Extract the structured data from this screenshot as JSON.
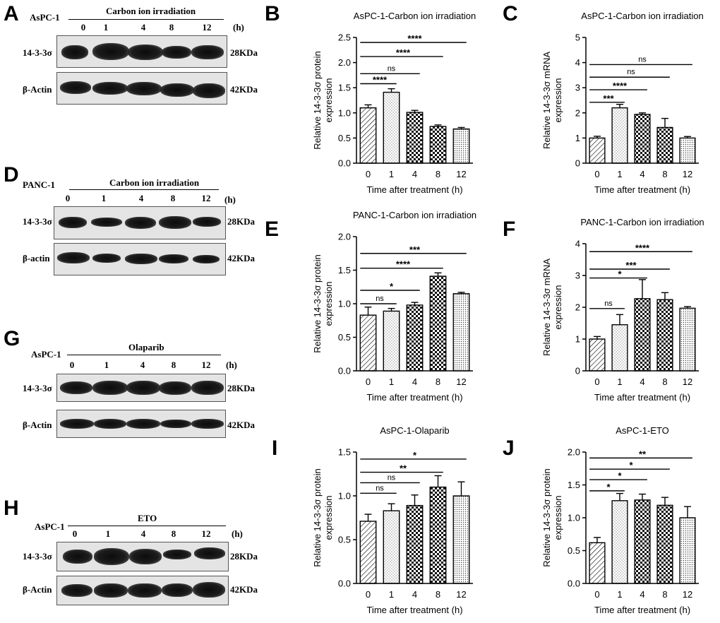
{
  "panel_letters": [
    "A",
    "B",
    "C",
    "D",
    "E",
    "F",
    "G",
    "H",
    "I",
    "J"
  ],
  "blots": [
    {
      "id": "A",
      "cell_line": "AsPC-1",
      "treatment": "Carbon ion irradiation",
      "lanes": [
        "0",
        "1",
        "4",
        "8",
        "12"
      ],
      "unit": "(h)",
      "rows": [
        {
          "label": "14-3-3σ",
          "kda": "28KDa",
          "bands": [
            0.75,
            0.95,
            0.85,
            0.7,
            0.8
          ]
        },
        {
          "label": "β-Actin",
          "kda": "42KDa",
          "bands": [
            0.75,
            0.75,
            0.78,
            0.8,
            0.85
          ]
        }
      ]
    },
    {
      "id": "D",
      "cell_line": "PANC-1",
      "treatment": "Carbon ion irradiation",
      "lanes": [
        "0",
        "1",
        "4",
        "8",
        "12"
      ],
      "unit": "(h)",
      "rows": [
        {
          "label": "14-3-3σ",
          "kda": "28KDa",
          "bands": [
            0.7,
            0.55,
            0.7,
            0.8,
            0.65
          ]
        },
        {
          "label": "β-actin",
          "kda": "42KDa",
          "bands": [
            0.75,
            0.5,
            0.7,
            0.6,
            0.55
          ]
        }
      ]
    },
    {
      "id": "G",
      "cell_line": "AsPC-1",
      "treatment": "Olaparib",
      "lanes": [
        "0",
        "1",
        "4",
        "8",
        "12"
      ],
      "unit": "(h)",
      "rows": [
        {
          "label": "14-3-3σ",
          "kda": "28KDa",
          "bands": [
            0.7,
            0.8,
            0.8,
            0.75,
            0.8
          ]
        },
        {
          "label": "β-Actin",
          "kda": "42KDa",
          "bands": [
            0.55,
            0.55,
            0.55,
            0.5,
            0.55
          ]
        }
      ]
    },
    {
      "id": "H",
      "cell_line": "AsPC-1",
      "treatment": "ETO",
      "lanes": [
        "0",
        "1",
        "4",
        "8",
        "12"
      ],
      "unit": "(h)",
      "rows": [
        {
          "label": "14-3-3σ",
          "kda": "28KDa",
          "bands": [
            0.8,
            0.95,
            0.9,
            0.55,
            0.7
          ]
        },
        {
          "label": "β-Actin",
          "kda": "42KDa",
          "bands": [
            0.75,
            0.8,
            0.8,
            0.75,
            0.85
          ]
        }
      ]
    }
  ],
  "chart_data": [
    {
      "id": "B",
      "type": "bar",
      "title": "AsPC-1-Carbon ion irradiation",
      "xlabel": "Time after treatment (h)",
      "ylabel": [
        "Relative 14-3-3σ protein",
        "expression"
      ],
      "categories": [
        "0",
        "1",
        "4",
        "8",
        "12"
      ],
      "values": [
        1.1,
        1.41,
        1.01,
        0.73,
        0.68
      ],
      "errors": [
        0.06,
        0.07,
        0.04,
        0.03,
        0.03
      ],
      "ylim": [
        0,
        2.5
      ],
      "yticks": [
        "0.0",
        "0.5",
        "1.0",
        "1.5",
        "2.0",
        "2.5"
      ],
      "patterns": [
        "diag",
        "dots",
        "cross",
        "cross",
        "dense"
      ],
      "comparisons": [
        {
          "from": 0,
          "to": 1,
          "y": 1.58,
          "label": "****"
        },
        {
          "from": 0,
          "to": 2,
          "y": 1.78,
          "label": "ns"
        },
        {
          "from": 0,
          "to": 3,
          "y": 2.12,
          "label": "****"
        },
        {
          "from": 0,
          "to": 4,
          "y": 2.4,
          "label": "****"
        }
      ]
    },
    {
      "id": "C",
      "type": "bar",
      "title": "AsPC-1-Carbon ion irradiation",
      "xlabel": "Time after treatment (h)",
      "ylabel": [
        "Relative 14-3-3σ mRNA",
        "expression"
      ],
      "categories": [
        "0",
        "1",
        "4",
        "8",
        "12"
      ],
      "values": [
        1.0,
        2.2,
        1.94,
        1.42,
        1.0
      ],
      "errors": [
        0.07,
        0.14,
        0.06,
        0.36,
        0.06
      ],
      "ylim": [
        0,
        5
      ],
      "yticks": [
        "0",
        "1",
        "2",
        "3",
        "4",
        "5"
      ],
      "patterns": [
        "diag",
        "dots",
        "cross",
        "cross",
        "dense"
      ],
      "comparisons": [
        {
          "from": 0,
          "to": 1,
          "y": 2.42,
          "label": "***"
        },
        {
          "from": 0,
          "to": 2,
          "y": 2.92,
          "label": "****"
        },
        {
          "from": 0,
          "to": 3,
          "y": 3.42,
          "label": "ns"
        },
        {
          "from": 0,
          "to": 4,
          "y": 3.92,
          "label": "ns"
        }
      ]
    },
    {
      "id": "E",
      "type": "bar",
      "title": "PANC-1-Carbon ion irradiation",
      "xlabel": "Time after treatment (h)",
      "ylabel": [
        "Relative 14-3-3σ protein",
        "expression"
      ],
      "categories": [
        "0",
        "1",
        "4",
        "8",
        "12"
      ],
      "values": [
        0.83,
        0.89,
        0.98,
        1.41,
        1.15
      ],
      "errors": [
        0.12,
        0.04,
        0.04,
        0.05,
        0.02
      ],
      "ylim": [
        0,
        2.0
      ],
      "yticks": [
        "0.0",
        "0.5",
        "1.0",
        "1.5",
        "2.0"
      ],
      "patterns": [
        "diag",
        "dots",
        "cross",
        "cross",
        "dense"
      ],
      "comparisons": [
        {
          "from": 0,
          "to": 1,
          "y": 1.0,
          "label": "ns"
        },
        {
          "from": 0,
          "to": 2,
          "y": 1.2,
          "label": "*"
        },
        {
          "from": 0,
          "to": 3,
          "y": 1.53,
          "label": "****"
        },
        {
          "from": 0,
          "to": 4,
          "y": 1.75,
          "label": "***"
        }
      ]
    },
    {
      "id": "F",
      "type": "bar",
      "title": "PANC-1-Carbon ion irradiation",
      "xlabel": "Time after treatment (h)",
      "ylabel": [
        "Relative 14-3-3σ mRNA",
        "expression"
      ],
      "categories": [
        "0",
        "1",
        "4",
        "8",
        "12"
      ],
      "values": [
        1.0,
        1.45,
        2.27,
        2.24,
        1.97
      ],
      "errors": [
        0.08,
        0.32,
        0.6,
        0.22,
        0.05
      ],
      "ylim": [
        0,
        4
      ],
      "yticks": [
        "0",
        "1",
        "2",
        "3",
        "4"
      ],
      "patterns": [
        "diag",
        "dots",
        "cross",
        "cross",
        "dense"
      ],
      "comparisons": [
        {
          "from": 0,
          "to": 1,
          "y": 1.96,
          "label": "ns"
        },
        {
          "from": 0,
          "to": 2,
          "y": 2.92,
          "label": "*"
        },
        {
          "from": 0,
          "to": 3,
          "y": 3.2,
          "label": "***"
        },
        {
          "from": 0,
          "to": 4,
          "y": 3.75,
          "label": "****"
        }
      ]
    },
    {
      "id": "I",
      "type": "bar",
      "title": "AsPC-1-Olaparib",
      "xlabel": "Time after treatment (h)",
      "ylabel": [
        "Relative 14-3-3σ protein",
        "expression"
      ],
      "categories": [
        "0",
        "1",
        "4",
        "8",
        "12"
      ],
      "values": [
        0.71,
        0.83,
        0.89,
        1.1,
        1.0
      ],
      "errors": [
        0.08,
        0.08,
        0.12,
        0.13,
        0.16
      ],
      "ylim": [
        0,
        1.5
      ],
      "yticks": [
        "0.0",
        "0.5",
        "1.0",
        "1.5"
      ],
      "patterns": [
        "diag",
        "dots",
        "cross",
        "cross",
        "dense"
      ],
      "comparisons": [
        {
          "from": 0,
          "to": 1,
          "y": 1.03,
          "label": "ns"
        },
        {
          "from": 0,
          "to": 2,
          "y": 1.15,
          "label": "ns"
        },
        {
          "from": 0,
          "to": 3,
          "y": 1.27,
          "label": "**"
        },
        {
          "from": 0,
          "to": 4,
          "y": 1.42,
          "label": "*"
        }
      ]
    },
    {
      "id": "J",
      "type": "bar",
      "title": "AsPC-1-ETO",
      "xlabel": "Time after treatment (h)",
      "ylabel": [
        "Relative 14-3-3σ protein",
        "expression"
      ],
      "categories": [
        "0",
        "1",
        "4",
        "8",
        "12"
      ],
      "values": [
        0.62,
        1.26,
        1.27,
        1.19,
        1.0
      ],
      "errors": [
        0.08,
        0.11,
        0.09,
        0.12,
        0.17
      ],
      "ylim": [
        0,
        2.0
      ],
      "yticks": [
        "0.0",
        "0.5",
        "1.0",
        "1.5",
        "2.0"
      ],
      "patterns": [
        "diag",
        "dots",
        "cross",
        "cross",
        "dense"
      ],
      "comparisons": [
        {
          "from": 0,
          "to": 1,
          "y": 1.41,
          "label": "*"
        },
        {
          "from": 0,
          "to": 2,
          "y": 1.58,
          "label": "*"
        },
        {
          "from": 0,
          "to": 3,
          "y": 1.74,
          "label": "*"
        },
        {
          "from": 0,
          "to": 4,
          "y": 1.91,
          "label": "**"
        }
      ]
    }
  ]
}
